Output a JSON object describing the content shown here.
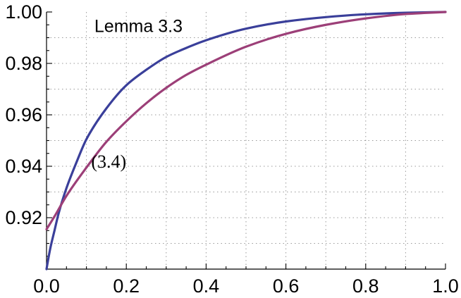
{
  "chart_data": {
    "type": "line",
    "xlim": [
      0.0,
      1.0
    ],
    "ylim": [
      0.9,
      1.0
    ],
    "x_ticks": [
      "0.0",
      "0.2",
      "0.4",
      "0.6",
      "0.8",
      "1.0"
    ],
    "y_ticks": [
      "0.92",
      "0.94",
      "0.96",
      "0.98",
      "1.00"
    ],
    "grid": true,
    "annotations": [
      {
        "text": "Lemma 3.3",
        "series": "Lemma 3.3"
      },
      {
        "text": "(3.4)",
        "series": "(3.4)"
      }
    ],
    "series": [
      {
        "name": "Lemma 3.3",
        "color": "#3a3f9a",
        "x": [
          0.0,
          0.005,
          0.01,
          0.02,
          0.03,
          0.05,
          0.075,
          0.1,
          0.15,
          0.2,
          0.25,
          0.3,
          0.35,
          0.4,
          0.5,
          0.6,
          0.7,
          0.8,
          0.9,
          1.0
        ],
        "y": [
          0.9,
          0.9045,
          0.9085,
          0.915,
          0.9215,
          0.9315,
          0.9415,
          0.9505,
          0.9625,
          0.9715,
          0.9775,
          0.9825,
          0.986,
          0.989,
          0.9935,
          0.9963,
          0.998,
          0.9991,
          0.9997,
          1.0
        ]
      },
      {
        "name": "(3.4)",
        "color": "#9c3f78",
        "x": [
          0.0,
          0.02,
          0.05,
          0.1,
          0.15,
          0.2,
          0.25,
          0.3,
          0.35,
          0.4,
          0.5,
          0.6,
          0.7,
          0.8,
          0.9,
          1.0
        ],
        "y": [
          0.9155,
          0.9205,
          0.9285,
          0.9395,
          0.9495,
          0.9575,
          0.9645,
          0.9705,
          0.9755,
          0.9795,
          0.9865,
          0.9915,
          0.995,
          0.9975,
          0.9992,
          1.0
        ]
      }
    ]
  }
}
